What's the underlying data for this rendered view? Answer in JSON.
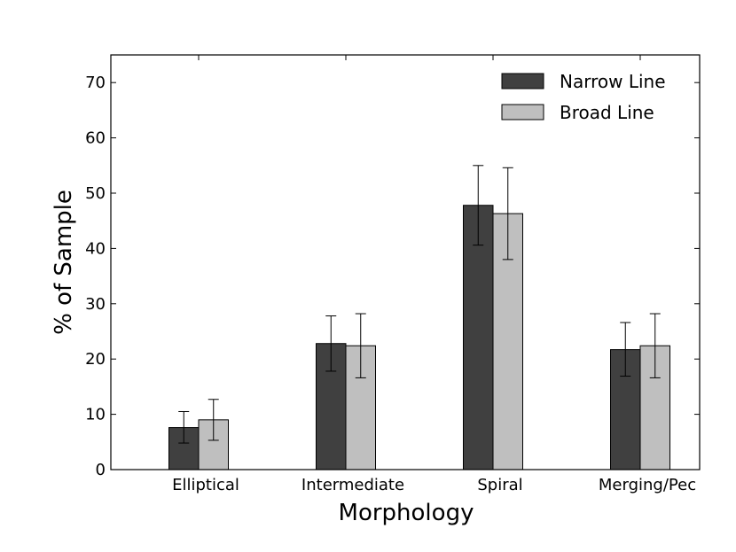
{
  "chart_data": {
    "type": "bar",
    "title": "",
    "xlabel": "Morphology",
    "ylabel": "% of Sample",
    "categories": [
      "Elliptical",
      "Intermediate",
      "Spiral",
      "Merging/Pec"
    ],
    "ylim": [
      0,
      75
    ],
    "yticks": [
      0,
      10,
      20,
      30,
      40,
      50,
      60,
      70
    ],
    "grid": false,
    "legend_position": "top-right",
    "series": [
      {
        "name": "Narrow Line",
        "color": "#404040",
        "values": [
          7.6,
          22.8,
          47.8,
          21.7
        ],
        "error_low": [
          4.8,
          17.8,
          40.6,
          16.9
        ],
        "error_high": [
          10.5,
          27.8,
          55.0,
          26.6
        ]
      },
      {
        "name": "Broad Line",
        "color": "#bfbfbf",
        "values": [
          9.0,
          22.4,
          46.3,
          22.4
        ],
        "error_low": [
          5.3,
          16.6,
          38.0,
          16.6
        ],
        "error_high": [
          12.7,
          28.2,
          54.6,
          28.2
        ]
      }
    ]
  }
}
